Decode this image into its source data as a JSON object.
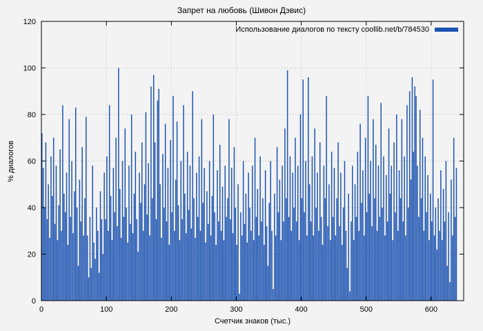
{
  "title": "Запрет на любовь (Шивон Дэвис)",
  "legend": {
    "label": "Использование диалогов по тексту coollib.net/b/784530"
  },
  "axes": {
    "ylabel": "% диалогов",
    "xlabel": "Счетчик знаков (тыс.)"
  },
  "colors": {
    "bar": "#1c53b1",
    "grid": "#b8b8b8",
    "border": "#000000",
    "background": "#f3f3f3"
  },
  "chart_data": {
    "type": "bar",
    "title": "Запрет на любовь (Шивон Дэвис)",
    "xlabel": "Счетчик знаков (тыс.)",
    "ylabel": "% диалогов",
    "legend_label": "Использование диалогов по тексту coollib.net/b/784530",
    "xlim": [
      0,
      650
    ],
    "ylim": [
      0,
      120
    ],
    "xticks": [
      0,
      100,
      200,
      300,
      400,
      500,
      600
    ],
    "yticks": [
      0,
      20,
      40,
      60,
      80,
      100,
      120
    ],
    "x_step": 2,
    "values": [
      72,
      57,
      40,
      68,
      35,
      50,
      27,
      62,
      45,
      70,
      33,
      58,
      26,
      41,
      65,
      30,
      84,
      46,
      38,
      55,
      24,
      78,
      36,
      60,
      29,
      47,
      83,
      40,
      15,
      52,
      34,
      66,
      28,
      44,
      79,
      28,
      10,
      36,
      14,
      58,
      25,
      18,
      40,
      30,
      12,
      47,
      35,
      20,
      55,
      35,
      62,
      30,
      84,
      45,
      26,
      57,
      38,
      70,
      32,
      100,
      48,
      27,
      60,
      36,
      74,
      40,
      25,
      58,
      33,
      80,
      29,
      46,
      64,
      35,
      21,
      55,
      42,
      68,
      30,
      50,
      81,
      37,
      59,
      28,
      92,
      44,
      97,
      68,
      35,
      86,
      91,
      50,
      27,
      63,
      40,
      76,
      34,
      57,
      24,
      69,
      38,
      88,
      30,
      52,
      77,
      41,
      26,
      60,
      35,
      84,
      46,
      29,
      64,
      39,
      58,
      31,
      90,
      44,
      27,
      55,
      36,
      62,
      30,
      78,
      42,
      57,
      25,
      47,
      33,
      60,
      28,
      45,
      80,
      38,
      24,
      56,
      34,
      67,
      30,
      49,
      26,
      58,
      36,
      44,
      78,
      35,
      57,
      29,
      66,
      40,
      24,
      50,
      3,
      38,
      28,
      60,
      33,
      46,
      25,
      55,
      40,
      30,
      58,
      26,
      70,
      36,
      48,
      28,
      62,
      34,
      44,
      24,
      56,
      32,
      15,
      42,
      60,
      30,
      5,
      46,
      28,
      66,
      38,
      52,
      26,
      58,
      34,
      74,
      44,
      99,
      36,
      62,
      30,
      55,
      40,
      70,
      34,
      58,
      26,
      80,
      44,
      95,
      38,
      60,
      28,
      96,
      50,
      34,
      62,
      28,
      74,
      40,
      55,
      30,
      68,
      36,
      24,
      58,
      44,
      88,
      32,
      50,
      26,
      64,
      36,
      57,
      28,
      44,
      68,
      32,
      55,
      24,
      40,
      60,
      30,
      14,
      46,
      4,
      34,
      58,
      26,
      50,
      36,
      64,
      30,
      76,
      42,
      56,
      28,
      70,
      38,
      88,
      46,
      60,
      32,
      78,
      44,
      67,
      30,
      58,
      36,
      85,
      40,
      62,
      28,
      54,
      34,
      74,
      46,
      58,
      26,
      68,
      38,
      80,
      30,
      56,
      44,
      78,
      34,
      62,
      28,
      84,
      40,
      90,
      52,
      96,
      64,
      92,
      88,
      58,
      36,
      82,
      44,
      70,
      30,
      62,
      38,
      54,
      26,
      46,
      34,
      95,
      28,
      40,
      22,
      44,
      30,
      56,
      26,
      48,
      34,
      60,
      15,
      38,
      8,
      52,
      28,
      70,
      36,
      57
    ]
  }
}
